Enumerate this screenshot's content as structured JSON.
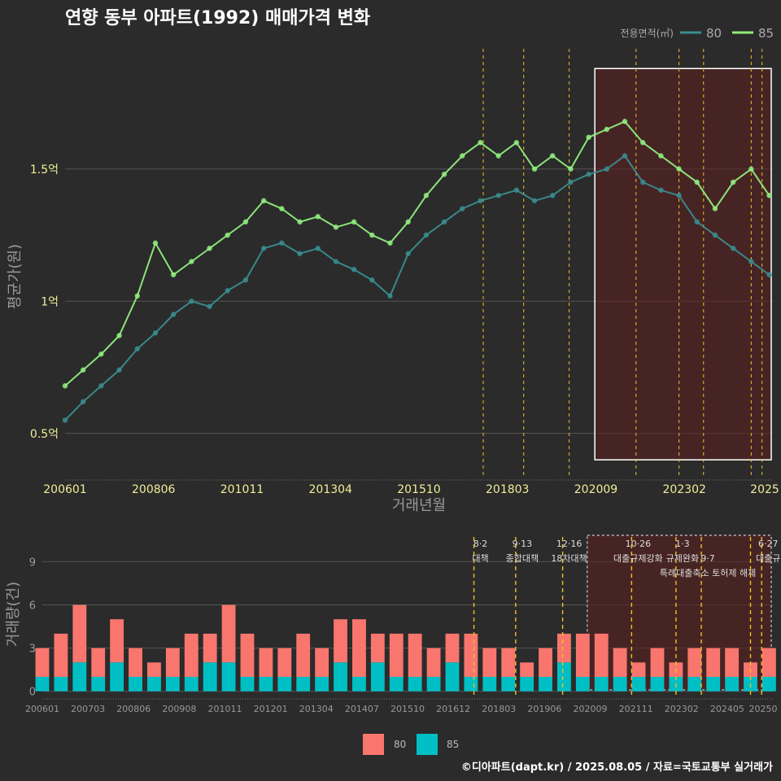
{
  "title": "연향 동부 아파트(1992) 매매가격 변화",
  "footer": "©디아파트(dapt.kr) / 2025.08.05 / 자료=국토교통부 실거래가",
  "colors": {
    "background": "#2b2b2b",
    "s80_price": "#3a8d8f",
    "s85_price": "#90ee7e",
    "s80_vol": "#f8766d",
    "s85_vol": "#00bfc4",
    "policy_line": "#f0c020",
    "highlight_fill": "#5a1f1f",
    "grid": "#555555",
    "text": "#dddddd",
    "axis_text": "#eeee99"
  },
  "chart_data": [
    {
      "type": "line",
      "title": "연향 동부 아파트(1992) 매매가격 변화",
      "xlabel": "거래년월",
      "ylabel": "평균가(원)",
      "x_ticks": [
        "200601",
        "200806",
        "201011",
        "201304",
        "201510",
        "201803",
        "202009",
        "202302",
        "2025"
      ],
      "y_ticks": [
        "0.5억",
        "1억",
        "1.5억"
      ],
      "y_tick_values": [
        0.5,
        1.0,
        1.5
      ],
      "ylim": [
        0.33,
        1.97
      ],
      "xlim": [
        2006.0,
        2025.6
      ],
      "legend_title": "전용면적(㎡)",
      "legend_position": "top-right",
      "highlight_x": [
        2020.67,
        2025.6
      ],
      "highlight_y": [
        0.4,
        1.88
      ],
      "policy_x": [
        2017.58,
        2018.7,
        2019.96,
        2021.81,
        2023.0,
        2023.68,
        2025.0,
        2025.3
      ],
      "series": [
        {
          "name": "80",
          "x": [
            2006.0,
            2006.5,
            2007.0,
            2007.5,
            2008.0,
            2008.5,
            2009.0,
            2009.5,
            2010.0,
            2010.5,
            2011.0,
            2011.5,
            2012.0,
            2012.5,
            2013.0,
            2013.5,
            2014.0,
            2014.5,
            2015.0,
            2015.5,
            2016.0,
            2016.5,
            2017.0,
            2017.5,
            2018.0,
            2018.5,
            2019.0,
            2019.5,
            2020.0,
            2020.5,
            2021.0,
            2021.5,
            2022.0,
            2022.5,
            2023.0,
            2023.5,
            2024.0,
            2024.5,
            2025.0,
            2025.5
          ],
          "values": [
            0.55,
            0.62,
            0.68,
            0.74,
            0.82,
            0.88,
            0.95,
            1.0,
            0.98,
            1.04,
            1.08,
            1.2,
            1.22,
            1.18,
            1.2,
            1.15,
            1.12,
            1.08,
            1.02,
            1.18,
            1.25,
            1.3,
            1.35,
            1.38,
            1.4,
            1.42,
            1.38,
            1.4,
            1.45,
            1.48,
            1.5,
            1.55,
            1.45,
            1.42,
            1.4,
            1.3,
            1.25,
            1.2,
            1.15,
            1.1
          ]
        },
        {
          "name": "85",
          "x": [
            2006.0,
            2006.5,
            2007.0,
            2007.5,
            2008.0,
            2008.5,
            2009.0,
            2009.5,
            2010.0,
            2010.5,
            2011.0,
            2011.5,
            2012.0,
            2012.5,
            2013.0,
            2013.5,
            2014.0,
            2014.5,
            2015.0,
            2015.5,
            2016.0,
            2016.5,
            2017.0,
            2017.5,
            2018.0,
            2018.5,
            2019.0,
            2019.5,
            2020.0,
            2020.5,
            2021.0,
            2021.5,
            2022.0,
            2022.5,
            2023.0,
            2023.5,
            2024.0,
            2024.5,
            2025.0,
            2025.5
          ],
          "values": [
            0.68,
            0.74,
            0.8,
            0.87,
            1.02,
            1.22,
            1.1,
            1.15,
            1.2,
            1.25,
            1.3,
            1.38,
            1.35,
            1.3,
            1.32,
            1.28,
            1.3,
            1.25,
            1.22,
            1.3,
            1.4,
            1.48,
            1.55,
            1.6,
            1.55,
            1.6,
            1.5,
            1.55,
            1.5,
            1.62,
            1.65,
            1.68,
            1.6,
            1.55,
            1.5,
            1.45,
            1.35,
            1.45,
            1.5,
            1.4
          ]
        }
      ]
    },
    {
      "type": "bar",
      "stacked": true,
      "xlabel": "",
      "ylabel": "거래량(건)",
      "x_ticks": [
        "200601",
        "200703",
        "200806",
        "200908",
        "201011",
        "201201",
        "201304",
        "201407",
        "201510",
        "201612",
        "201803",
        "201906",
        "202009",
        "202111",
        "202302",
        "202405",
        "20250"
      ],
      "y_ticks": [
        "0",
        "3",
        "6",
        "9"
      ],
      "y_tick_values": [
        0,
        3,
        6,
        9
      ],
      "ylim": [
        -0.3,
        11.0
      ],
      "xlim": [
        2006.0,
        2025.6
      ],
      "highlight_x": [
        2020.62,
        2025.6
      ],
      "policy_x": [
        2017.58,
        2018.7,
        2019.96,
        2021.81,
        2023.0,
        2023.68,
        2025.0,
        2025.3
      ],
      "policies": [
        {
          "date": "8·2",
          "name": "대책",
          "x": 2017.58
        },
        {
          "date": "9·13",
          "name": "종합대책",
          "x": 2018.7
        },
        {
          "date": "12·16",
          "name": "18차대책",
          "x": 2019.96
        },
        {
          "date": "10·26",
          "name": "대출규제강화",
          "x": 2021.81
        },
        {
          "date": "1·3",
          "name": "규제완화",
          "x": 2023.0
        },
        {
          "date": "9·7",
          "name": "특례대출축소 토허제 해제",
          "x": 2023.68
        },
        {
          "date": "6·27",
          "name": "대출규",
          "x": 2025.3
        }
      ],
      "series": [
        {
          "name": "80",
          "x": [
            2006.0,
            2006.5,
            2007.0,
            2007.5,
            2008.0,
            2008.5,
            2009.0,
            2009.5,
            2010.0,
            2010.5,
            2011.0,
            2011.5,
            2012.0,
            2012.5,
            2013.0,
            2013.5,
            2014.0,
            2014.5,
            2015.0,
            2015.5,
            2016.0,
            2016.5,
            2017.0,
            2017.5,
            2018.0,
            2018.5,
            2019.0,
            2019.5,
            2020.0,
            2020.5,
            2021.0,
            2021.5,
            2022.0,
            2022.5,
            2023.0,
            2023.5,
            2024.0,
            2024.5,
            2025.0,
            2025.5
          ],
          "values": [
            2,
            3,
            4,
            2,
            3,
            2,
            1,
            2,
            3,
            2,
            4,
            3,
            2,
            2,
            3,
            2,
            3,
            4,
            2,
            3,
            3,
            2,
            2,
            3,
            2,
            2,
            1,
            2,
            2,
            3,
            3,
            2,
            1,
            2,
            1,
            2,
            2,
            2,
            1,
            2
          ]
        },
        {
          "name": "85",
          "x": [
            2006.0,
            2006.5,
            2007.0,
            2007.5,
            2008.0,
            2008.5,
            2009.0,
            2009.5,
            2010.0,
            2010.5,
            2011.0,
            2011.5,
            2012.0,
            2012.5,
            2013.0,
            2013.5,
            2014.0,
            2014.5,
            2015.0,
            2015.5,
            2016.0,
            2016.5,
            2017.0,
            2017.5,
            2018.0,
            2018.5,
            2019.0,
            2019.5,
            2020.0,
            2020.5,
            2021.0,
            2021.5,
            2022.0,
            2022.5,
            2023.0,
            2023.5,
            2024.0,
            2024.5,
            2025.0,
            2025.5
          ],
          "values": [
            1,
            1,
            2,
            1,
            2,
            1,
            1,
            1,
            1,
            2,
            2,
            1,
            1,
            1,
            1,
            1,
            2,
            1,
            2,
            1,
            1,
            1,
            2,
            1,
            1,
            1,
            1,
            1,
            2,
            1,
            1,
            1,
            1,
            1,
            1,
            1,
            1,
            1,
            1,
            1
          ]
        }
      ],
      "legend": [
        "80",
        "85"
      ],
      "legend_position": "bottom"
    }
  ]
}
